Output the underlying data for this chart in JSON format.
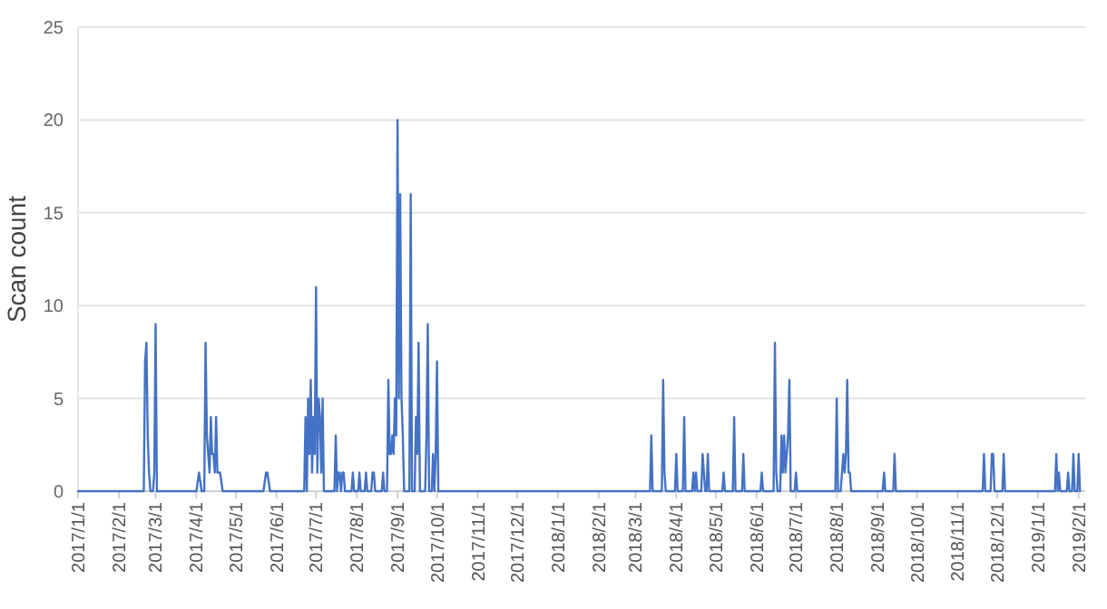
{
  "chart_data": {
    "type": "line",
    "ylabel": "Scan count",
    "color": "#4472c4",
    "grid": "y",
    "line_style": "solid",
    "ylim": [
      0,
      25
    ],
    "yticks": [
      0,
      5,
      10,
      15,
      20,
      25
    ],
    "xlim": [
      "2017-01-01",
      "2019-02-06"
    ],
    "xticks": [
      {
        "value": "2017-01-01",
        "label": "2017/1/1"
      },
      {
        "value": "2017-02-01",
        "label": "2017/2/1"
      },
      {
        "value": "2017-03-01",
        "label": "2017/3/1"
      },
      {
        "value": "2017-04-01",
        "label": "2017/4/1"
      },
      {
        "value": "2017-05-01",
        "label": "2017/5/1"
      },
      {
        "value": "2017-06-01",
        "label": "2017/6/1"
      },
      {
        "value": "2017-07-01",
        "label": "2017/7/1"
      },
      {
        "value": "2017-08-01",
        "label": "2017/8/1"
      },
      {
        "value": "2017-09-01",
        "label": "2017/9/1"
      },
      {
        "value": "2017-10-01",
        "label": "2017/10/1"
      },
      {
        "value": "2017-11-01",
        "label": "2017/11/1"
      },
      {
        "value": "2017-12-01",
        "label": "2017/12/1"
      },
      {
        "value": "2018-01-01",
        "label": "2018/1/1"
      },
      {
        "value": "2018-02-01",
        "label": "2018/2/1"
      },
      {
        "value": "2018-03-01",
        "label": "2018/3/1"
      },
      {
        "value": "2018-04-01",
        "label": "2018/4/1"
      },
      {
        "value": "2018-05-01",
        "label": "2018/5/1"
      },
      {
        "value": "2018-06-01",
        "label": "2018/6/1"
      },
      {
        "value": "2018-07-01",
        "label": "2018/7/1"
      },
      {
        "value": "2018-08-01",
        "label": "2018/8/1"
      },
      {
        "value": "2018-09-01",
        "label": "2018/9/1"
      },
      {
        "value": "2018-10-01",
        "label": "2018/10/1"
      },
      {
        "value": "2018-11-01",
        "label": "2018/11/1"
      },
      {
        "value": "2018-12-01",
        "label": "2018/12/1"
      },
      {
        "value": "2019-01-01",
        "label": "2019/1/1"
      },
      {
        "value": "2019-02-01",
        "label": "2019/2/1"
      }
    ],
    "x": [
      "2017-01-01",
      "2017-02-20",
      "2017-02-21",
      "2017-02-22",
      "2017-02-23",
      "2017-02-24",
      "2017-02-25",
      "2017-02-27",
      "2017-02-28",
      "2017-03-01",
      "2017-03-02",
      "2017-04-01",
      "2017-04-03",
      "2017-04-05",
      "2017-04-07",
      "2017-04-08",
      "2017-04-09",
      "2017-04-10",
      "2017-04-11",
      "2017-04-12",
      "2017-04-13",
      "2017-04-14",
      "2017-04-15",
      "2017-04-16",
      "2017-04-17",
      "2017-04-18",
      "2017-04-19",
      "2017-04-21",
      "2017-05-22",
      "2017-05-24",
      "2017-05-25",
      "2017-05-27",
      "2017-06-22",
      "2017-06-23",
      "2017-06-24",
      "2017-06-25",
      "2017-06-26",
      "2017-06-27",
      "2017-06-28",
      "2017-06-29",
      "2017-06-30",
      "2017-07-01",
      "2017-07-02",
      "2017-07-03",
      "2017-07-04",
      "2017-07-05",
      "2017-07-06",
      "2017-07-07",
      "2017-07-15",
      "2017-07-16",
      "2017-07-17",
      "2017-07-18",
      "2017-07-19",
      "2017-07-20",
      "2017-07-21",
      "2017-07-22",
      "2017-07-23",
      "2017-07-28",
      "2017-07-29",
      "2017-07-30",
      "2017-08-02",
      "2017-08-03",
      "2017-08-04",
      "2017-08-07",
      "2017-08-08",
      "2017-08-09",
      "2017-08-12",
      "2017-08-13",
      "2017-08-14",
      "2017-08-15",
      "2017-08-20",
      "2017-08-21",
      "2017-08-22",
      "2017-08-24",
      "2017-08-25",
      "2017-08-26",
      "2017-08-27",
      "2017-08-28",
      "2017-08-29",
      "2017-08-30",
      "2017-08-31",
      "2017-09-01",
      "2017-09-02",
      "2017-09-03",
      "2017-09-04",
      "2017-09-05",
      "2017-09-06",
      "2017-09-10",
      "2017-09-11",
      "2017-09-12",
      "2017-09-14",
      "2017-09-15",
      "2017-09-16",
      "2017-09-17",
      "2017-09-18",
      "2017-09-22",
      "2017-09-23",
      "2017-09-24",
      "2017-09-25",
      "2017-09-27",
      "2017-09-28",
      "2017-09-29",
      "2017-09-30",
      "2017-10-01",
      "2017-10-02",
      "2018-03-12",
      "2018-03-13",
      "2018-03-14",
      "2018-03-21",
      "2018-03-22",
      "2018-03-23",
      "2018-03-24",
      "2018-03-31",
      "2018-04-01",
      "2018-04-02",
      "2018-04-06",
      "2018-04-07",
      "2018-04-08",
      "2018-04-13",
      "2018-04-14",
      "2018-04-15",
      "2018-04-16",
      "2018-04-17",
      "2018-04-20",
      "2018-04-21",
      "2018-04-22",
      "2018-04-23",
      "2018-04-24",
      "2018-04-25",
      "2018-04-26",
      "2018-05-06",
      "2018-05-07",
      "2018-05-08",
      "2018-05-14",
      "2018-05-15",
      "2018-05-16",
      "2018-05-21",
      "2018-05-22",
      "2018-05-23",
      "2018-06-04",
      "2018-06-05",
      "2018-06-06",
      "2018-06-14",
      "2018-06-15",
      "2018-06-16",
      "2018-06-17",
      "2018-06-19",
      "2018-06-20",
      "2018-06-21",
      "2018-06-22",
      "2018-06-23",
      "2018-06-25",
      "2018-06-26",
      "2018-06-27",
      "2018-06-30",
      "2018-07-01",
      "2018-07-02",
      "2018-07-31",
      "2018-08-01",
      "2018-08-02",
      "2018-08-04",
      "2018-08-05",
      "2018-08-06",
      "2018-08-07",
      "2018-08-08",
      "2018-08-09",
      "2018-08-10",
      "2018-08-11",
      "2018-08-12",
      "2018-09-05",
      "2018-09-06",
      "2018-09-07",
      "2018-09-13",
      "2018-09-14",
      "2018-09-15",
      "2018-11-20",
      "2018-11-21",
      "2018-11-22",
      "2018-11-26",
      "2018-11-27",
      "2018-11-28",
      "2018-11-29",
      "2018-12-05",
      "2018-12-06",
      "2018-12-07",
      "2019-01-14",
      "2019-01-15",
      "2019-01-16",
      "2019-01-17",
      "2019-01-18",
      "2019-01-23",
      "2019-01-24",
      "2019-01-25",
      "2019-01-27",
      "2019-01-28",
      "2019-01-29",
      "2019-01-31",
      "2019-02-01",
      "2019-02-02"
    ],
    "values": [
      0,
      0,
      7,
      8,
      3,
      1,
      0,
      0,
      1,
      9,
      0,
      0,
      1,
      0,
      0,
      8,
      3,
      2,
      1,
      4,
      2,
      2,
      1,
      4,
      1,
      1,
      1,
      0,
      0,
      1,
      1,
      0,
      0,
      4,
      0,
      5,
      2,
      6,
      1,
      4,
      2,
      11,
      1,
      5,
      4,
      1,
      5,
      0,
      0,
      3,
      0,
      1,
      1,
      0,
      1,
      1,
      0,
      0,
      1,
      0,
      0,
      1,
      0,
      0,
      1,
      0,
      0,
      1,
      1,
      0,
      0,
      1,
      0,
      0,
      6,
      2,
      2,
      3,
      2,
      5,
      3,
      20,
      5,
      16,
      5,
      3,
      0,
      0,
      16,
      0,
      0,
      4,
      2,
      8,
      0,
      0,
      3,
      9,
      0,
      0,
      2,
      0,
      2,
      7,
      0,
      0,
      3,
      0,
      0,
      6,
      1,
      0,
      0,
      2,
      0,
      0,
      4,
      0,
      0,
      1,
      0,
      1,
      0,
      0,
      2,
      1,
      0,
      0,
      2,
      0,
      0,
      1,
      0,
      0,
      4,
      0,
      0,
      2,
      0,
      0,
      1,
      0,
      0,
      8,
      1,
      0,
      0,
      3,
      1,
      3,
      1,
      3,
      6,
      0,
      0,
      1,
      0,
      0,
      5,
      0,
      0,
      1,
      2,
      1,
      2,
      6,
      1,
      1,
      0,
      0,
      1,
      0,
      0,
      2,
      0,
      0,
      2,
      0,
      0,
      2,
      2,
      0,
      0,
      2,
      0,
      0,
      2,
      0,
      1,
      0,
      0,
      1,
      0,
      0,
      2,
      0,
      0,
      2,
      0
    ]
  }
}
